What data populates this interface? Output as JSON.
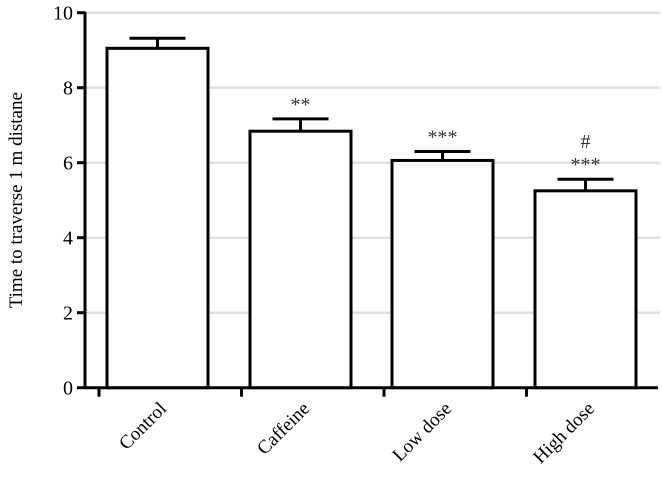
{
  "chart_data": {
    "type": "bar",
    "title": "",
    "xlabel": "",
    "ylabel": "Time to traverse 1 m distane",
    "ylim": [
      0,
      10
    ],
    "yticks": [
      0,
      2,
      4,
      6,
      8,
      10
    ],
    "grid": "horizontal",
    "categories": [
      "Control",
      "Caffeine",
      "Low dose",
      "High dose"
    ],
    "values": [
      9.05,
      6.84,
      6.06,
      5.25
    ],
    "error_upper": [
      9.32,
      7.17,
      6.3,
      5.56
    ],
    "annotations": [
      {
        "category": "Caffeine",
        "lines": [
          "**"
        ]
      },
      {
        "category": "Low dose",
        "lines": [
          "***"
        ]
      },
      {
        "category": "High dose",
        "lines": [
          "#",
          "***"
        ]
      }
    ],
    "colors": {
      "bar_fill": "#ffffff",
      "bar_stroke": "#000000",
      "grid": "#e0e0e0"
    }
  }
}
